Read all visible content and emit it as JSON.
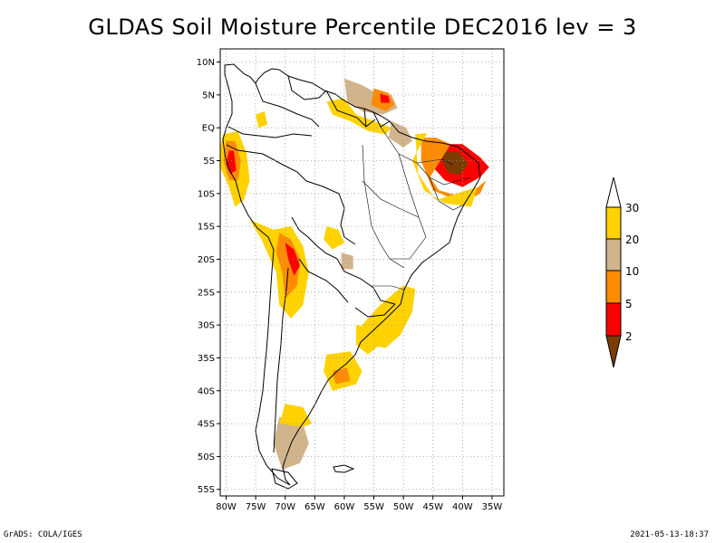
{
  "title": "GLDAS Soil Moisture Percentile DEC2016 lev = 3",
  "footer": {
    "left": "GrADS: COLA/IGES",
    "right": "2021-05-13-18:37"
  },
  "map": {
    "lat_range": [
      -56,
      12
    ],
    "lon_range": [
      -81,
      -33
    ],
    "lat_ticks": [
      {
        "value": 10,
        "label": "10N"
      },
      {
        "value": 5,
        "label": "5N"
      },
      {
        "value": 0,
        "label": "EQ"
      },
      {
        "value": -5,
        "label": "5S"
      },
      {
        "value": -10,
        "label": "10S"
      },
      {
        "value": -15,
        "label": "15S"
      },
      {
        "value": -20,
        "label": "20S"
      },
      {
        "value": -25,
        "label": "25S"
      },
      {
        "value": -30,
        "label": "30S"
      },
      {
        "value": -35,
        "label": "35S"
      },
      {
        "value": -40,
        "label": "40S"
      },
      {
        "value": -45,
        "label": "45S"
      },
      {
        "value": -50,
        "label": "50S"
      },
      {
        "value": -55,
        "label": "55S"
      }
    ],
    "lon_ticks": [
      {
        "value": -80,
        "label": "80W"
      },
      {
        "value": -75,
        "label": "75W"
      },
      {
        "value": -70,
        "label": "70W"
      },
      {
        "value": -65,
        "label": "65W"
      },
      {
        "value": -60,
        "label": "60W"
      },
      {
        "value": -55,
        "label": "55W"
      },
      {
        "value": -50,
        "label": "50W"
      },
      {
        "value": -45,
        "label": "45W"
      },
      {
        "value": -40,
        "label": "40W"
      },
      {
        "value": -35,
        "label": "35W"
      }
    ],
    "grid": true
  },
  "legend": {
    "colors": {
      "below_2": "#7a3c00",
      "2_5": "#ff0000",
      "5_10": "#ff8c00",
      "10_20": "#d2b48c",
      "20_30": "#ffd200",
      "above_30": "#ffffff"
    },
    "labels": [
      "2",
      "5",
      "10",
      "20",
      "30"
    ]
  },
  "regions": [
    {
      "name": "ne-brazil-dry",
      "class": "2_5",
      "points": [
        [
          -44.5,
          -2.5
        ],
        [
          -40,
          -2.5
        ],
        [
          -37,
          -4.5
        ],
        [
          -35.5,
          -6
        ],
        [
          -37,
          -7.5
        ],
        [
          -40,
          -9
        ],
        [
          -43,
          -8
        ],
        [
          -45,
          -6
        ]
      ]
    },
    {
      "name": "ne-brazil-core",
      "class": "below_2",
      "points": [
        [
          -43,
          -3.5
        ],
        [
          -40.5,
          -3.8
        ],
        [
          -39,
          -5.5
        ],
        [
          -40.5,
          -7.2
        ],
        [
          -42.5,
          -6.8
        ],
        [
          -43.5,
          -5
        ]
      ]
    },
    {
      "name": "ne-brazil-halo",
      "class": "5_10",
      "points": [
        [
          -47,
          -1.5
        ],
        [
          -44.5,
          -1.5
        ],
        [
          -42,
          -2.5
        ],
        [
          -45.5,
          -7.5
        ],
        [
          -44,
          -9.5
        ],
        [
          -40,
          -10.5
        ],
        [
          -38,
          -9.5
        ],
        [
          -36,
          -8
        ],
        [
          -37,
          -10
        ],
        [
          -40,
          -11.5
        ],
        [
          -45,
          -9.5
        ],
        [
          -47,
          -5
        ]
      ]
    },
    {
      "name": "ne-brazil-outer",
      "class": "20_30",
      "points": [
        [
          -48,
          -1
        ],
        [
          -46,
          -0.8
        ],
        [
          -48.5,
          -5
        ],
        [
          -46.5,
          -9.5
        ],
        [
          -43,
          -11.5
        ],
        [
          -38.5,
          -12
        ],
        [
          -37.5,
          -9
        ],
        [
          -44.5,
          -11
        ],
        [
          -47.5,
          -7
        ]
      ]
    },
    {
      "name": "guianas-tan",
      "class": "10_20",
      "points": [
        [
          -60,
          7.5
        ],
        [
          -57,
          6.5
        ],
        [
          -55,
          5.5
        ],
        [
          -52,
          5
        ],
        [
          -51,
          3
        ],
        [
          -53.5,
          2
        ],
        [
          -57,
          2.5
        ],
        [
          -59.5,
          4
        ]
      ]
    },
    {
      "name": "guianas-orange",
      "class": "5_10",
      "points": [
        [
          -55,
          6
        ],
        [
          -52.5,
          5.3
        ],
        [
          -51.5,
          3.5
        ],
        [
          -53,
          2.5
        ],
        [
          -55.5,
          3.5
        ]
      ]
    },
    {
      "name": "guianas-red",
      "class": "2_5",
      "points": [
        [
          -54,
          5.2
        ],
        [
          -52.5,
          4.8
        ],
        [
          -52.3,
          3.8
        ],
        [
          -53.8,
          3.8
        ]
      ]
    },
    {
      "name": "guianas-yellow",
      "class": "20_30",
      "points": [
        [
          -63,
          4
        ],
        [
          -60,
          4.5
        ],
        [
          -58,
          2
        ],
        [
          -55,
          1
        ],
        [
          -52,
          0
        ],
        [
          -53,
          -1
        ],
        [
          -56,
          -0.5
        ],
        [
          -59,
          1
        ],
        [
          -62,
          2
        ]
      ]
    },
    {
      "name": "amazon-mouth",
      "class": "10_20",
      "points": [
        [
          -52,
          1
        ],
        [
          -49.5,
          0
        ],
        [
          -48.5,
          -2
        ],
        [
          -50,
          -3
        ],
        [
          -52.5,
          -1.5
        ]
      ]
    },
    {
      "name": "peru-coast-yellow",
      "class": "20_30",
      "points": [
        [
          -80.5,
          -1
        ],
        [
          -78,
          -0.5
        ],
        [
          -76.5,
          -4
        ],
        [
          -76,
          -8
        ],
        [
          -77,
          -11
        ],
        [
          -78.5,
          -12
        ],
        [
          -79.5,
          -9
        ],
        [
          -81,
          -6
        ],
        [
          -81,
          -3
        ]
      ]
    },
    {
      "name": "peru-coast-orange",
      "class": "5_10",
      "points": [
        [
          -80,
          -2
        ],
        [
          -78.5,
          -2
        ],
        [
          -77.5,
          -5
        ],
        [
          -78,
          -8
        ],
        [
          -79.5,
          -8
        ],
        [
          -80.5,
          -5
        ]
      ]
    },
    {
      "name": "peru-coast-red",
      "class": "2_5",
      "points": [
        [
          -79.5,
          -3.5
        ],
        [
          -78.7,
          -3.5
        ],
        [
          -78.3,
          -6.5
        ],
        [
          -79.3,
          -7
        ],
        [
          -80,
          -5.5
        ]
      ]
    },
    {
      "name": "andes-yellow",
      "class": "20_30",
      "points": [
        [
          -76,
          -14
        ],
        [
          -72,
          -15.5
        ],
        [
          -69,
          -15
        ],
        [
          -67,
          -18
        ],
        [
          -66,
          -22
        ],
        [
          -67,
          -27
        ],
        [
          -69,
          -29
        ],
        [
          -71,
          -27
        ],
        [
          -71.5,
          -22
        ],
        [
          -74,
          -17
        ]
      ]
    },
    {
      "name": "andes-orange",
      "class": "5_10",
      "points": [
        [
          -71,
          -16
        ],
        [
          -69,
          -17
        ],
        [
          -67.5,
          -20
        ],
        [
          -68,
          -24
        ],
        [
          -70,
          -26
        ],
        [
          -70.5,
          -22
        ],
        [
          -71.5,
          -19
        ]
      ]
    },
    {
      "name": "andes-red",
      "class": "2_5",
      "points": [
        [
          -70,
          -17.5
        ],
        [
          -68.5,
          -18.5
        ],
        [
          -67.5,
          -21
        ],
        [
          -68.5,
          -22.5
        ],
        [
          -69.5,
          -20
        ]
      ]
    },
    {
      "name": "paraguay-tan",
      "class": "10_20",
      "points": [
        [
          -60.5,
          -19
        ],
        [
          -58.5,
          -19.5
        ],
        [
          -58.5,
          -21.5
        ],
        [
          -60.5,
          -21.5
        ]
      ]
    },
    {
      "name": "bolivia-yellow",
      "class": "20_30",
      "points": [
        [
          -63,
          -15
        ],
        [
          -61,
          -15.5
        ],
        [
          -60,
          -17.5
        ],
        [
          -62,
          -18.5
        ],
        [
          -63.5,
          -17
        ]
      ]
    },
    {
      "name": "southern-brazil-yellow",
      "class": "20_30",
      "points": [
        [
          -50,
          -24
        ],
        [
          -48,
          -24.5
        ],
        [
          -48.5,
          -28
        ],
        [
          -50.5,
          -31.5
        ],
        [
          -53,
          -33.5
        ],
        [
          -56,
          -33
        ],
        [
          -57,
          -30
        ],
        [
          -54,
          -27
        ]
      ]
    },
    {
      "name": "uruguay-yellow",
      "class": "20_30",
      "points": [
        [
          -58,
          -30
        ],
        [
          -55,
          -30.5
        ],
        [
          -54,
          -33
        ],
        [
          -56,
          -34.5
        ],
        [
          -58,
          -33
        ]
      ]
    },
    {
      "name": "pampas-yellow",
      "class": "20_30",
      "points": [
        [
          -63,
          -34.5
        ],
        [
          -59,
          -34
        ],
        [
          -57,
          -37
        ],
        [
          -58,
          -39
        ],
        [
          -62,
          -40
        ],
        [
          -63.5,
          -37
        ]
      ]
    },
    {
      "name": "pampas-orange",
      "class": "5_10",
      "points": [
        [
          -62,
          -37
        ],
        [
          -59.5,
          -36.5
        ],
        [
          -59,
          -38.5
        ],
        [
          -61.5,
          -39
        ]
      ]
    },
    {
      "name": "patagonia-tan",
      "class": "10_20",
      "points": [
        [
          -71,
          -44
        ],
        [
          -67,
          -45
        ],
        [
          -66,
          -48
        ],
        [
          -67.5,
          -51
        ],
        [
          -70.5,
          -52
        ],
        [
          -72,
          -48
        ]
      ]
    },
    {
      "name": "patagonia-yellow",
      "class": "20_30",
      "points": [
        [
          -70,
          -42
        ],
        [
          -67,
          -42.5
        ],
        [
          -65.5,
          -45
        ],
        [
          -67,
          -45.5
        ],
        [
          -71,
          -45
        ]
      ]
    },
    {
      "name": "colombia-yellow",
      "class": "20_30",
      "points": [
        [
          -75,
          2
        ],
        [
          -73.5,
          2.5
        ],
        [
          -73,
          0.5
        ],
        [
          -74.5,
          0
        ]
      ]
    }
  ]
}
